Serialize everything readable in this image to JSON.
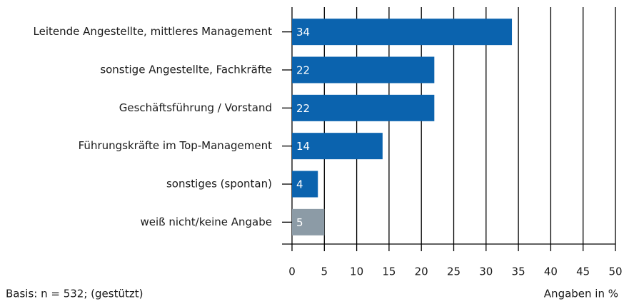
{
  "chart_data": {
    "type": "bar",
    "orientation": "horizontal",
    "categories": [
      "Leitende Angestellte, mittleres Management",
      "sonstige Angestellte, Fachkräfte",
      "Geschäftsführung / Vorstand",
      "Führungskräfte im Top-Management",
      "sonstiges (spontan)",
      "weiß nicht/keine Angabe"
    ],
    "values": [
      34,
      22,
      22,
      14,
      4,
      5
    ],
    "colors": [
      "#0b63ae",
      "#0b63ae",
      "#0b63ae",
      "#0b63ae",
      "#0b63ae",
      "#8c9ba6"
    ],
    "xlim": [
      0,
      50
    ],
    "xticks": [
      0,
      5,
      10,
      15,
      20,
      25,
      30,
      35,
      40,
      45,
      50
    ],
    "grid": true,
    "xlabel": "Angaben in %",
    "footnote": "Basis: n = 532; (gestützt)"
  }
}
